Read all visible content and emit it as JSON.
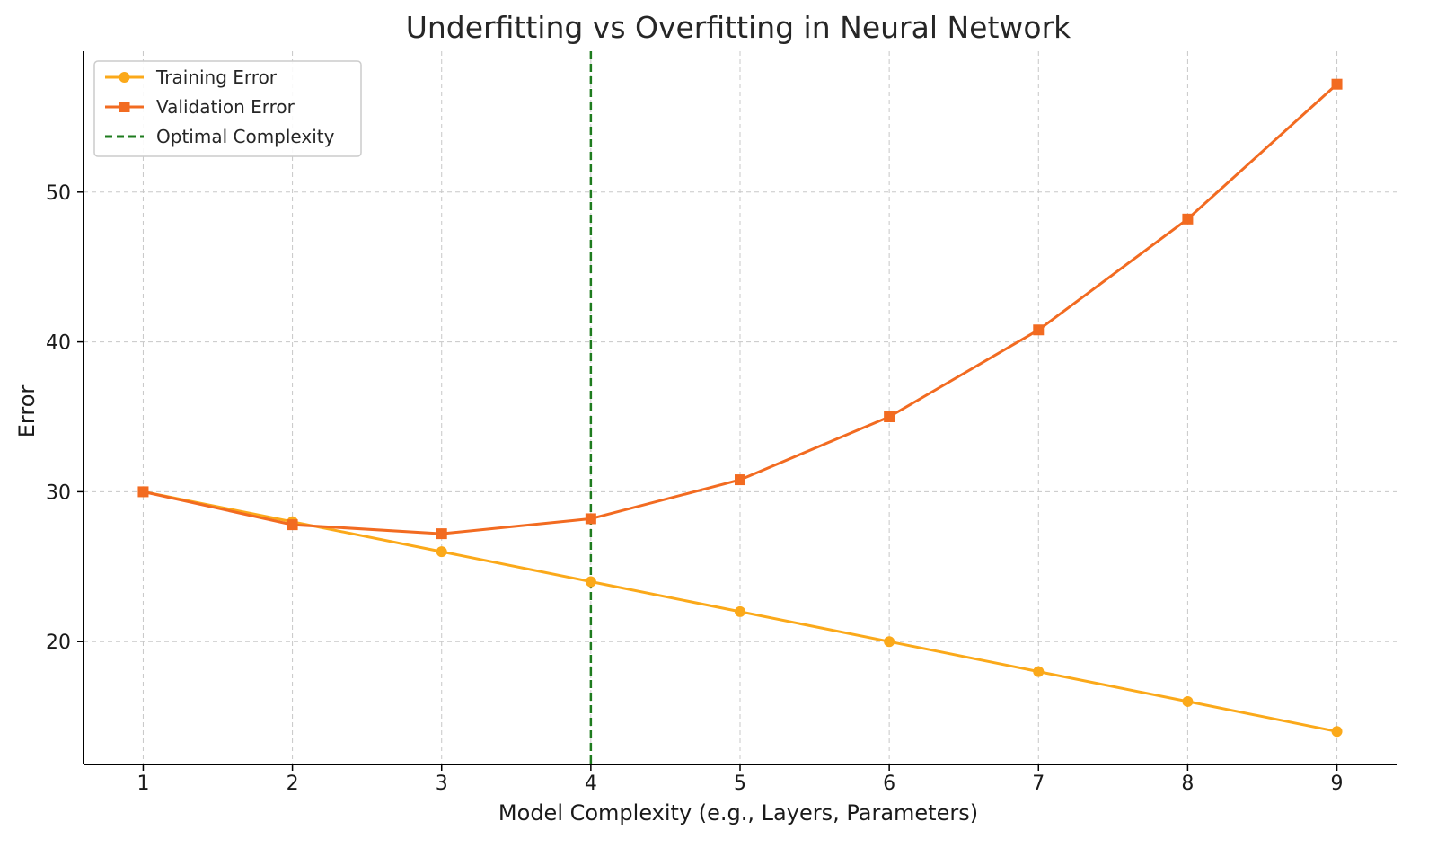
{
  "chart_data": {
    "type": "line",
    "title": "Underfitting vs Overfitting in Neural Network",
    "xlabel": "Model Complexity (e.g., Layers, Parameters)",
    "ylabel": "Error",
    "x": [
      1,
      2,
      3,
      4,
      5,
      6,
      7,
      8,
      9
    ],
    "xlim": [
      0.6,
      9.4
    ],
    "ylim": [
      11.8,
      59.4
    ],
    "xticks": [
      "1",
      "2",
      "3",
      "4",
      "5",
      "6",
      "7",
      "8",
      "9"
    ],
    "yticks": [
      20,
      30,
      40,
      50
    ],
    "ytick_labels": [
      "20",
      "30",
      "40",
      "50"
    ],
    "grid": true,
    "legend_position": "top-left",
    "series": [
      {
        "name": "Training Error",
        "color": "#FBA91A",
        "marker": "circle",
        "values": [
          30,
          28,
          26,
          24,
          22,
          20,
          18,
          16,
          14
        ]
      },
      {
        "name": "Validation Error",
        "color": "#F26B21",
        "marker": "square",
        "values": [
          30,
          27.8,
          27.2,
          28.2,
          30.8,
          35.0,
          40.8,
          48.2,
          57.2
        ]
      }
    ],
    "reference_line": {
      "name": "Optimal Complexity",
      "orientation": "vertical",
      "x": 4,
      "color": "#1E7B1E",
      "style": "dashed"
    }
  }
}
